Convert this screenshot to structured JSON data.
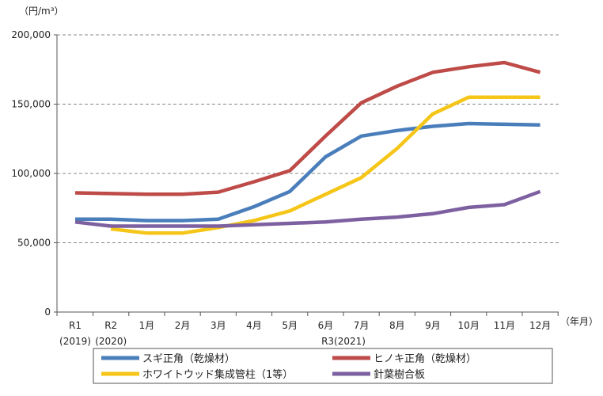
{
  "chart_data": {
    "type": "line",
    "y_unit": "（円/m³）",
    "x_unit": "（年月）",
    "categories": [
      "R1",
      "R2",
      "1月",
      "2月",
      "3月",
      "4月",
      "5月",
      "6月",
      "7月",
      "8月",
      "9月",
      "10月",
      "11月",
      "12月"
    ],
    "x_sublabels": [
      "(2019)",
      "(2020)"
    ],
    "x_group_label": "R3(2021)",
    "ylim": [
      0,
      200000
    ],
    "yticks": [
      0,
      50000,
      100000,
      150000,
      200000
    ],
    "ytick_labels": [
      "0",
      "50,000",
      "100,000",
      "150,000",
      "200,000"
    ],
    "grid": "horizontal-dashed",
    "legend_position": "bottom",
    "series": [
      {
        "name": "スギ正角（乾燥材）",
        "color": "#4a7ebb",
        "values": [
          67000,
          67000,
          66000,
          66000,
          67000,
          76000,
          87000,
          112000,
          127000,
          131000,
          134000,
          136000,
          135500,
          135000
        ]
      },
      {
        "name": "ヒノキ正角（乾燥材）",
        "color": "#be4b48",
        "values": [
          86000,
          85500,
          85000,
          85000,
          86500,
          94000,
          102000,
          127000,
          151000,
          163000,
          173000,
          177000,
          180000,
          173000
        ]
      },
      {
        "name": "ホワイトウッド集成管柱（1等）",
        "color": "#f5c518",
        "values": [
          null,
          60000,
          57000,
          57000,
          61000,
          66000,
          73000,
          85000,
          97000,
          118000,
          143000,
          155000,
          155000,
          155000
        ]
      },
      {
        "name": "針葉樹合板",
        "color": "#7d60a0",
        "values": [
          65000,
          62000,
          62000,
          62000,
          62000,
          63000,
          64000,
          65000,
          67000,
          68500,
          71000,
          75500,
          77500,
          87000
        ]
      }
    ]
  }
}
